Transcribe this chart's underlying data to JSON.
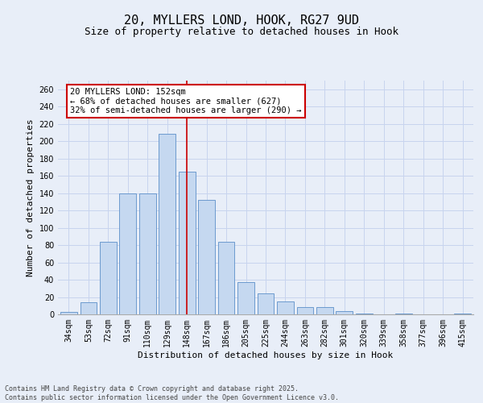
{
  "title_line1": "20, MYLLERS LOND, HOOK, RG27 9UD",
  "title_line2": "Size of property relative to detached houses in Hook",
  "xlabel": "Distribution of detached houses by size in Hook",
  "ylabel": "Number of detached properties",
  "categories": [
    "34sqm",
    "53sqm",
    "72sqm",
    "91sqm",
    "110sqm",
    "129sqm",
    "148sqm",
    "167sqm",
    "186sqm",
    "205sqm",
    "225sqm",
    "244sqm",
    "263sqm",
    "282sqm",
    "301sqm",
    "320sqm",
    "339sqm",
    "358sqm",
    "377sqm",
    "396sqm",
    "415sqm"
  ],
  "values": [
    3,
    14,
    84,
    140,
    140,
    209,
    165,
    132,
    84,
    37,
    24,
    15,
    8,
    8,
    4,
    1,
    0,
    1,
    0,
    0,
    1
  ],
  "bar_color": "#c5d8f0",
  "bar_edge_color": "#5b8fc9",
  "bar_linewidth": 0.6,
  "vline_x_index": 6,
  "vline_color": "#cc0000",
  "annotation_line1": "20 MYLLERS LOND: 152sqm",
  "annotation_line2": "← 68% of detached houses are smaller (627)",
  "annotation_line3": "32% of semi-detached houses are larger (290) →",
  "annotation_box_color": "#cc0000",
  "annotation_bg": "white",
  "ylim": [
    0,
    270
  ],
  "yticks": [
    0,
    20,
    40,
    60,
    80,
    100,
    120,
    140,
    160,
    180,
    200,
    220,
    240,
    260
  ],
  "grid_color": "#c8d4ee",
  "background_color": "#e8eef8",
  "footer_line1": "Contains HM Land Registry data © Crown copyright and database right 2025.",
  "footer_line2": "Contains public sector information licensed under the Open Government Licence v3.0.",
  "title_fontsize": 11,
  "subtitle_fontsize": 9,
  "axis_label_fontsize": 8,
  "tick_fontsize": 7,
  "annotation_fontsize": 7.5,
  "footer_fontsize": 6
}
